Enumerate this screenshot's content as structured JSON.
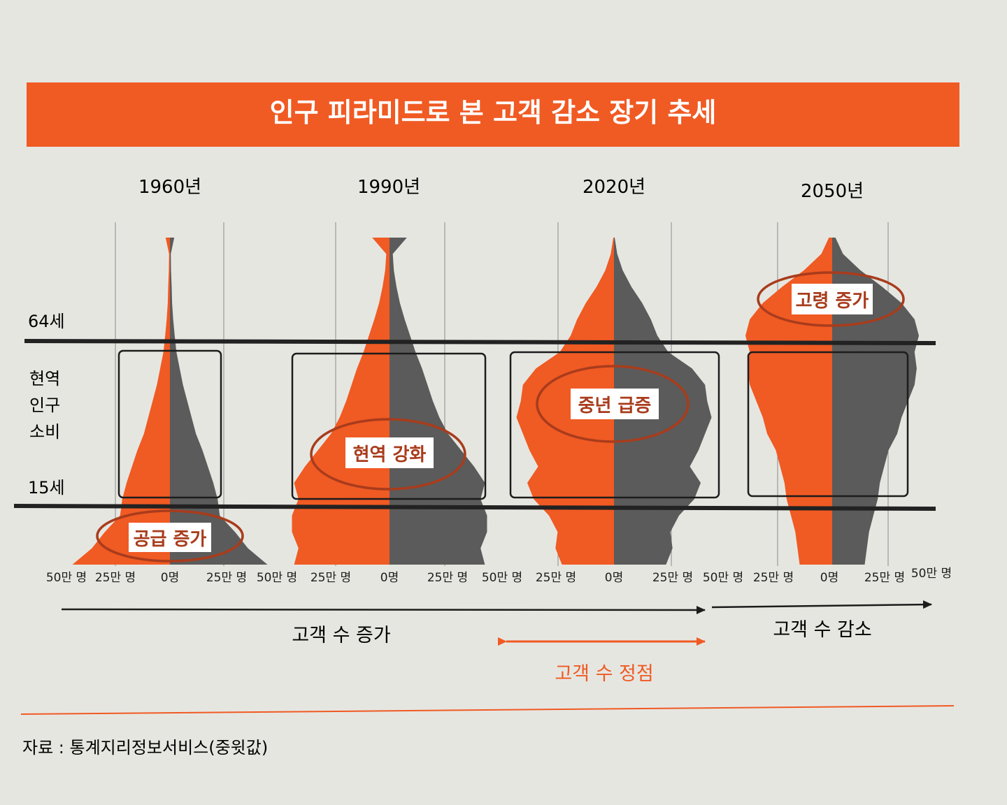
{
  "title": "인구 피라미드로 본 고객 감소 장기 추세",
  "colors": {
    "accent": "#f05a23",
    "male": "#f05a23",
    "female": "#5b5b5b",
    "text": "#1c1c1c",
    "band": "#222222"
  },
  "band_labels": {
    "upper": "64세",
    "middle": [
      "현역",
      "인구",
      "소비"
    ],
    "lower": "15세"
  },
  "chart_data": {
    "type": "population-pyramid",
    "panels": [
      {
        "year": "1960년",
        "annotation": "공급 증가",
        "x_ticks": [
          "50만 명",
          "25만 명",
          "0명",
          "25만 명",
          "50만 명"
        ],
        "x_range": [
          -500000,
          500000
        ],
        "age_range": [
          0,
          100
        ],
        "profile": [
          [
            0,
            450000
          ],
          [
            5,
            360000
          ],
          [
            10,
            300000
          ],
          [
            15,
            230000
          ],
          [
            20,
            220000
          ],
          [
            25,
            200000
          ],
          [
            30,
            175000
          ],
          [
            35,
            150000
          ],
          [
            40,
            120000
          ],
          [
            45,
            100000
          ],
          [
            50,
            80000
          ],
          [
            55,
            60000
          ],
          [
            60,
            45000
          ],
          [
            65,
            30000
          ],
          [
            70,
            22000
          ],
          [
            75,
            15000
          ],
          [
            80,
            10000
          ],
          [
            85,
            8000
          ],
          [
            90,
            5000
          ],
          [
            95,
            4000
          ],
          [
            100,
            20000
          ]
        ]
      },
      {
        "year": "1990년",
        "annotation": "현역 강화",
        "x_ticks": [
          "50만 명",
          "25만 명",
          "0명",
          "25만 명",
          "50만 명"
        ],
        "x_range": [
          -500000,
          500000
        ],
        "age_range": [
          0,
          100
        ],
        "profile": [
          [
            0,
            440000
          ],
          [
            5,
            420000
          ],
          [
            10,
            450000
          ],
          [
            15,
            450000
          ],
          [
            20,
            420000
          ],
          [
            25,
            440000
          ],
          [
            30,
            390000
          ],
          [
            35,
            330000
          ],
          [
            40,
            270000
          ],
          [
            45,
            230000
          ],
          [
            50,
            200000
          ],
          [
            55,
            175000
          ],
          [
            60,
            150000
          ],
          [
            65,
            120000
          ],
          [
            70,
            95000
          ],
          [
            75,
            70000
          ],
          [
            80,
            48000
          ],
          [
            85,
            32000
          ],
          [
            90,
            20000
          ],
          [
            95,
            15000
          ],
          [
            100,
            80000
          ]
        ]
      },
      {
        "year": "2020년",
        "annotation": "중년 급증",
        "x_ticks": [
          "50만 명",
          "25만 명",
          "0명",
          "25만 명",
          "50만 명"
        ],
        "x_range": [
          -500000,
          500000
        ],
        "age_range": [
          0,
          100
        ],
        "profile": [
          [
            0,
            240000
          ],
          [
            5,
            270000
          ],
          [
            10,
            260000
          ],
          [
            15,
            300000
          ],
          [
            20,
            370000
          ],
          [
            25,
            400000
          ],
          [
            30,
            350000
          ],
          [
            35,
            390000
          ],
          [
            40,
            420000
          ],
          [
            45,
            450000
          ],
          [
            50,
            430000
          ],
          [
            55,
            420000
          ],
          [
            60,
            360000
          ],
          [
            65,
            250000
          ],
          [
            70,
            200000
          ],
          [
            75,
            170000
          ],
          [
            80,
            130000
          ],
          [
            85,
            80000
          ],
          [
            90,
            40000
          ],
          [
            95,
            15000
          ],
          [
            100,
            3000
          ]
        ]
      },
      {
        "year": "2050년",
        "annotation": "고령 증가",
        "x_ticks": [
          "25만 명",
          "0명",
          "25만 명",
          "50만 명"
        ],
        "x_range": [
          -500000,
          500000
        ],
        "age_range": [
          0,
          100
        ],
        "profile": [
          [
            0,
            150000
          ],
          [
            5,
            160000
          ],
          [
            10,
            170000
          ],
          [
            15,
            190000
          ],
          [
            20,
            210000
          ],
          [
            25,
            220000
          ],
          [
            30,
            240000
          ],
          [
            35,
            260000
          ],
          [
            40,
            300000
          ],
          [
            45,
            320000
          ],
          [
            50,
            350000
          ],
          [
            55,
            380000
          ],
          [
            60,
            390000
          ],
          [
            65,
            380000
          ],
          [
            70,
            400000
          ],
          [
            75,
            380000
          ],
          [
            80,
            320000
          ],
          [
            85,
            230000
          ],
          [
            90,
            130000
          ],
          [
            95,
            50000
          ],
          [
            100,
            15000
          ]
        ]
      }
    ],
    "shared_tick_labels": [
      "50만 명",
      "25만 명"
    ],
    "trend": {
      "increase": "고객 수 증가",
      "decrease": "고객 수 감소",
      "peak": "고객 수 정점"
    }
  },
  "source": "자료 : 통계지리정보서비스(중윗값)"
}
